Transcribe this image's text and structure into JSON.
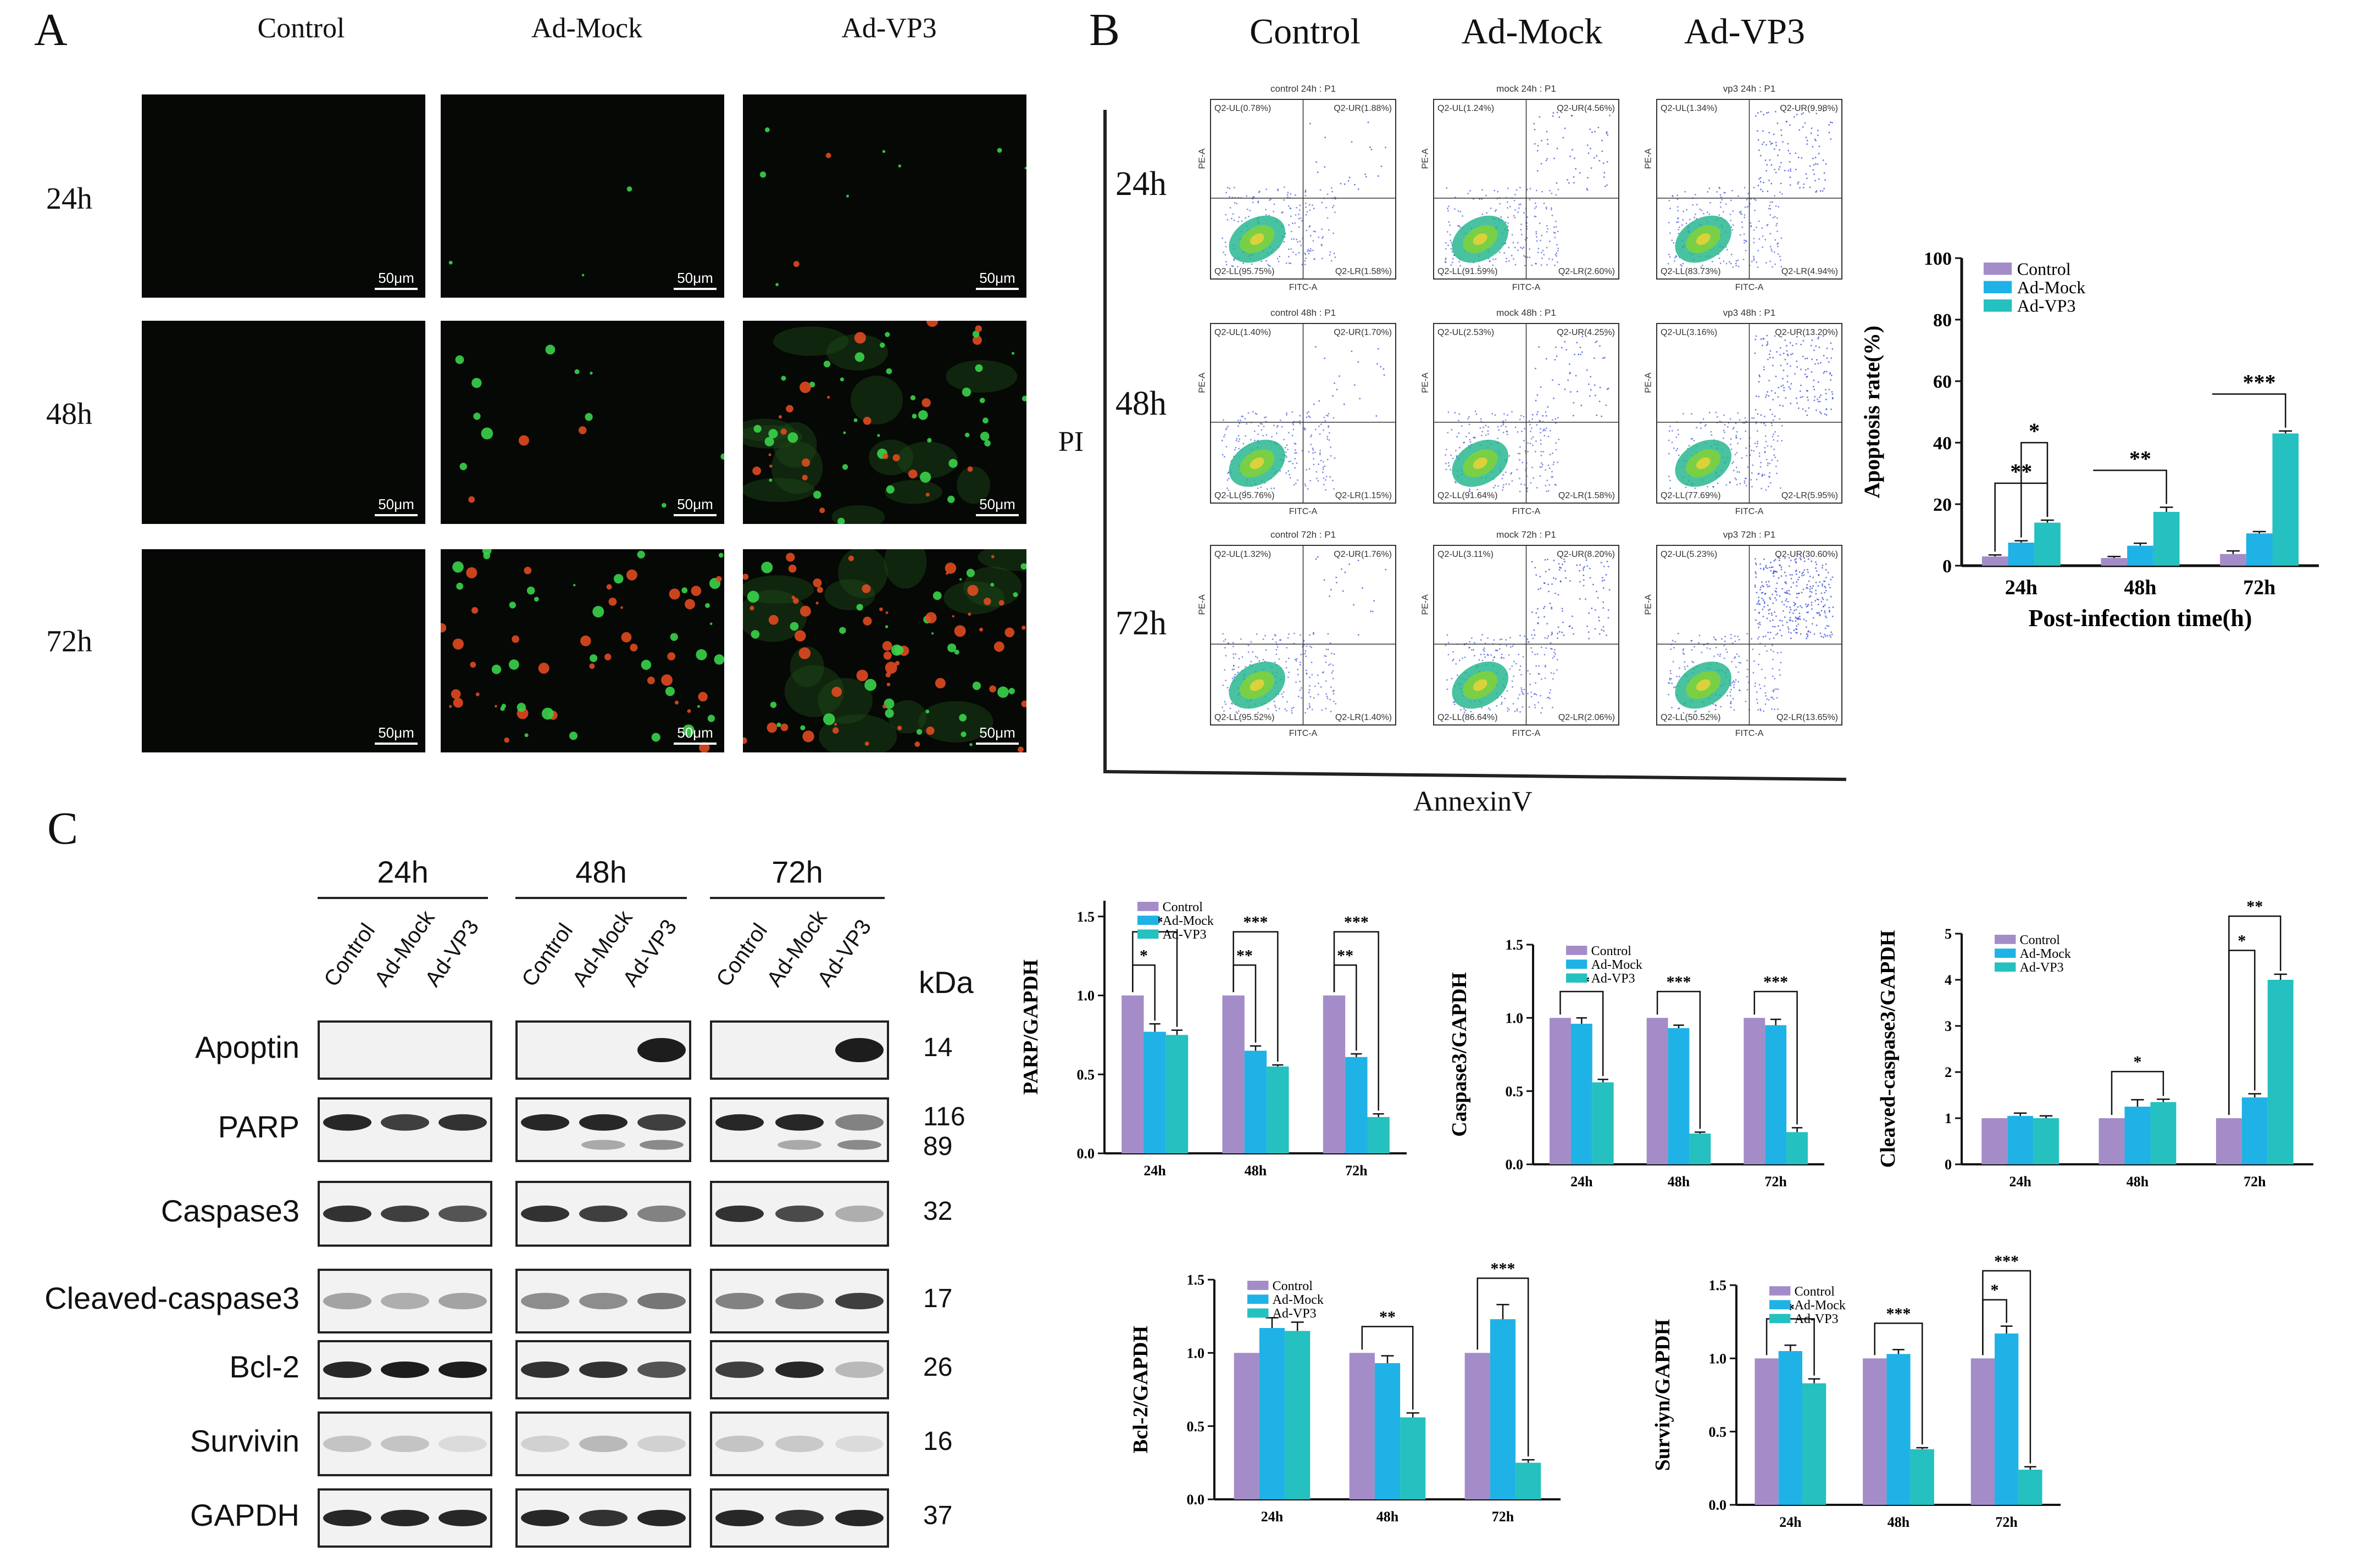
{
  "panelA": {
    "letter": "A",
    "columns": [
      "Control",
      "Ad-Mock",
      "Ad-VP3"
    ],
    "rows": [
      "24h",
      "48h",
      "72h"
    ],
    "scale": "50μm"
  },
  "panelB": {
    "letter": "B",
    "columns": [
      "Control",
      "Ad-Mock",
      "Ad-VP3"
    ],
    "rows": [
      "24h",
      "48h",
      "72h"
    ],
    "y_axis_label": "PI",
    "x_axis_label": "AnnexinV",
    "flow_plots": [
      {
        "title": "control 24h : P1",
        "ul": "Q2-UL(0.78%)",
        "ur": "Q2-UR(1.88%)",
        "ll": "Q2-LL(95.75%)",
        "lr": "Q2-LR(1.58%)"
      },
      {
        "title": "mock 24h : P1",
        "ul": "Q2-UL(1.24%)",
        "ur": "Q2-UR(4.56%)",
        "ll": "Q2-LL(91.59%)",
        "lr": "Q2-LR(2.60%)"
      },
      {
        "title": "vp3 24h : P1",
        "ul": "Q2-UL(1.34%)",
        "ur": "Q2-UR(9.98%)",
        "ll": "Q2-LL(83.73%)",
        "lr": "Q2-LR(4.94%)"
      },
      {
        "title": "control 48h : P1",
        "ul": "Q2-UL(1.40%)",
        "ur": "Q2-UR(1.70%)",
        "ll": "Q2-LL(95.76%)",
        "lr": "Q2-LR(1.15%)"
      },
      {
        "title": "mock 48h : P1",
        "ul": "Q2-UL(2.53%)",
        "ur": "Q2-UR(4.25%)",
        "ll": "Q2-LL(91.64%)",
        "lr": "Q2-LR(1.58%)"
      },
      {
        "title": "vp3 48h : P1",
        "ul": "Q2-UL(3.16%)",
        "ur": "Q2-UR(13.20%)",
        "ll": "Q2-LL(77.69%)",
        "lr": "Q2-LR(5.95%)"
      },
      {
        "title": "control 72h : P1",
        "ul": "Q2-UL(1.32%)",
        "ur": "Q2-UR(1.76%)",
        "ll": "Q2-LL(95.52%)",
        "lr": "Q2-LR(1.40%)"
      },
      {
        "title": "mock 72h : P1",
        "ul": "Q2-UL(3.11%)",
        "ur": "Q2-UR(8.20%)",
        "ll": "Q2-LL(86.64%)",
        "lr": "Q2-LR(2.06%)"
      },
      {
        "title": "vp3 72h : P1",
        "ul": "Q2-UL(5.23%)",
        "ur": "Q2-UR(30.60%)",
        "ll": "Q2-LL(50.52%)",
        "lr": "Q2-LR(13.65%)"
      }
    ],
    "flow_axes": {
      "x": "FITC-A",
      "y": "PE-A"
    }
  },
  "panelC": {
    "letter": "C",
    "time_groups": [
      "24h",
      "48h",
      "72h"
    ],
    "lanes": [
      "Control",
      "Ad-Mock",
      "Ad-VP3"
    ],
    "kda_header": "kDa",
    "proteins": [
      {
        "name": "Apoptin",
        "kda": "14"
      },
      {
        "name": "PARP",
        "kda": "116",
        "kda2": "89"
      },
      {
        "name": "Caspase3",
        "kda": "32"
      },
      {
        "name": "Cleaved-caspase3",
        "kda": "17"
      },
      {
        "name": "Bcl-2",
        "kda": "26"
      },
      {
        "name": "Survivin",
        "kda": "16"
      },
      {
        "name": "GAPDH",
        "kda": "37"
      }
    ]
  },
  "colors": {
    "Control": "#a48cc8",
    "Ad-Mock": "#1fb2e6",
    "Ad-VP3": "#25c0c0"
  },
  "chart_data": [
    {
      "id": "apoptosis",
      "type": "bar",
      "categories": [
        "24h",
        "48h",
        "72h"
      ],
      "series": [
        {
          "name": "Control",
          "values": [
            3,
            2.5,
            3.8
          ],
          "err": [
            0.5,
            0.5,
            1
          ]
        },
        {
          "name": "Ad-Mock",
          "values": [
            7.5,
            6.5,
            10.5
          ],
          "err": [
            0.6,
            0.8,
            0.6
          ]
        },
        {
          "name": "Ad-VP3",
          "values": [
            14,
            17.5,
            43
          ],
          "err": [
            0.8,
            1.5,
            0.8
          ]
        }
      ],
      "ylabel": "Apoptosis rate(%)",
      "xlabel": "Post-infection time(h)",
      "ylim": [
        0,
        100
      ],
      "yticks": [
        0,
        20,
        40,
        60,
        80,
        100
      ],
      "legend": "top-left",
      "sig": [
        {
          "g": 0,
          "from": 0,
          "to": 2,
          "level": 0,
          "text": "**"
        },
        {
          "g": 0,
          "from": 1,
          "to": 2,
          "level": 1,
          "text": "*"
        },
        {
          "g": 1,
          "from": 0,
          "to": 2,
          "level": 0,
          "text": "**",
          "open": true
        },
        {
          "g": 2,
          "from": 0,
          "to": 2,
          "level": 0,
          "text": "***",
          "open": true
        }
      ]
    },
    {
      "id": "parp",
      "type": "bar",
      "categories": [
        "24h",
        "48h",
        "72h"
      ],
      "series": [
        {
          "name": "Control",
          "values": [
            1.0,
            1.0,
            1.0
          ],
          "err": [
            0,
            0,
            0
          ]
        },
        {
          "name": "Ad-Mock",
          "values": [
            0.77,
            0.65,
            0.61
          ],
          "err": [
            0.05,
            0.03,
            0.02
          ]
        },
        {
          "name": "Ad-VP3",
          "values": [
            0.75,
            0.55,
            0.23
          ],
          "err": [
            0.03,
            0.01,
            0.02
          ]
        }
      ],
      "ylabel": "PARP/GAPDH",
      "ylim": [
        0,
        1.6
      ],
      "yticks": [
        0.0,
        0.5,
        1.0,
        1.5
      ],
      "legend": "top-left",
      "sig": [
        {
          "g": 0,
          "from": 0,
          "to": 1,
          "level": 0,
          "text": "*"
        },
        {
          "g": 0,
          "from": 0,
          "to": 2,
          "level": 1,
          "text": "**"
        },
        {
          "g": 1,
          "from": 0,
          "to": 1,
          "level": 0,
          "text": "**"
        },
        {
          "g": 1,
          "from": 0,
          "to": 2,
          "level": 1,
          "text": "***"
        },
        {
          "g": 2,
          "from": 0,
          "to": 1,
          "level": 0,
          "text": "**"
        },
        {
          "g": 2,
          "from": 0,
          "to": 2,
          "level": 1,
          "text": "***"
        }
      ]
    },
    {
      "id": "casp3",
      "type": "bar",
      "categories": [
        "24h",
        "48h",
        "72h"
      ],
      "series": [
        {
          "name": "Control",
          "values": [
            1.0,
            1.0,
            1.0
          ],
          "err": [
            0,
            0,
            0
          ]
        },
        {
          "name": "Ad-Mock",
          "values": [
            0.96,
            0.93,
            0.95
          ],
          "err": [
            0.04,
            0.02,
            0.04
          ]
        },
        {
          "name": "Ad-VP3",
          "values": [
            0.56,
            0.21,
            0.22
          ],
          "err": [
            0.02,
            0.01,
            0.03
          ]
        }
      ],
      "ylabel": "Caspase3/GAPDH",
      "ylim": [
        0,
        1.5
      ],
      "yticks": [
        0.0,
        0.5,
        1.0,
        1.5
      ],
      "legend": "top-left",
      "sig": [
        {
          "g": 0,
          "from": 0,
          "to": 2,
          "level": 0,
          "text": "**"
        },
        {
          "g": 1,
          "from": 0,
          "to": 2,
          "level": 0,
          "text": "***"
        },
        {
          "g": 2,
          "from": 0,
          "to": 2,
          "level": 0,
          "text": "***"
        }
      ]
    },
    {
      "id": "cleaved",
      "type": "bar",
      "categories": [
        "24h",
        "48h",
        "72h"
      ],
      "series": [
        {
          "name": "Control",
          "values": [
            1.0,
            1.0,
            1.0
          ],
          "err": [
            0,
            0,
            0
          ]
        },
        {
          "name": "Ad-Mock",
          "values": [
            1.05,
            1.25,
            1.45
          ],
          "err": [
            0.06,
            0.15,
            0.08
          ]
        },
        {
          "name": "Ad-VP3",
          "values": [
            1.0,
            1.35,
            4.0
          ],
          "err": [
            0.05,
            0.06,
            0.12
          ]
        }
      ],
      "ylabel": "Cleaved-caspase3/GAPDH",
      "ylim": [
        0,
        5
      ],
      "yticks": [
        0,
        1,
        2,
        3,
        4,
        5
      ],
      "legend": "top-left",
      "sig": [
        {
          "g": 1,
          "from": 0,
          "to": 2,
          "level": 0,
          "text": "*"
        },
        {
          "g": 2,
          "from": 0,
          "to": 1,
          "level": 0,
          "text": "*"
        },
        {
          "g": 2,
          "from": 0,
          "to": 2,
          "level": 1,
          "text": "**"
        }
      ]
    },
    {
      "id": "bcl2",
      "type": "bar",
      "categories": [
        "24h",
        "48h",
        "72h"
      ],
      "series": [
        {
          "name": "Control",
          "values": [
            1.0,
            1.0,
            1.0
          ],
          "err": [
            0,
            0,
            0
          ]
        },
        {
          "name": "Ad-Mock",
          "values": [
            1.17,
            0.93,
            1.23
          ],
          "err": [
            0.07,
            0.05,
            0.1
          ]
        },
        {
          "name": "Ad-VP3",
          "values": [
            1.15,
            0.56,
            0.25
          ],
          "err": [
            0.06,
            0.03,
            0.02
          ]
        }
      ],
      "ylabel": "Bcl-2/GAPDH",
      "ylim": [
        0,
        1.5
      ],
      "yticks": [
        0.0,
        0.5,
        1.0,
        1.5
      ],
      "legend": "top-left",
      "sig": [
        {
          "g": 1,
          "from": 0,
          "to": 2,
          "level": 0,
          "text": "**"
        },
        {
          "g": 2,
          "from": 0,
          "to": 2,
          "level": 0,
          "text": "***"
        }
      ]
    },
    {
      "id": "survivin",
      "type": "bar",
      "categories": [
        "24h",
        "48h",
        "72h"
      ],
      "series": [
        {
          "name": "Control",
          "values": [
            1.0,
            1.0,
            1.0
          ],
          "err": [
            0,
            0,
            0
          ]
        },
        {
          "name": "Ad-Mock",
          "values": [
            1.05,
            1.03,
            1.17
          ],
          "err": [
            0.04,
            0.03,
            0.05
          ]
        },
        {
          "name": "Ad-VP3",
          "values": [
            0.83,
            0.38,
            0.24
          ],
          "err": [
            0.03,
            0.01,
            0.02
          ]
        }
      ],
      "ylabel": "Surviyn/GAPDH",
      "ylim": [
        0,
        1.5
      ],
      "yticks": [
        0.0,
        0.5,
        1.0,
        1.5
      ],
      "legend": "top-left",
      "sig": [
        {
          "g": 0,
          "from": 0,
          "to": 2,
          "level": 0,
          "text": "*"
        },
        {
          "g": 1,
          "from": 0,
          "to": 2,
          "level": 0,
          "text": "***"
        },
        {
          "g": 2,
          "from": 0,
          "to": 1,
          "level": 0,
          "text": "*"
        },
        {
          "g": 2,
          "from": 0,
          "to": 2,
          "level": 1,
          "text": "***"
        }
      ]
    }
  ]
}
